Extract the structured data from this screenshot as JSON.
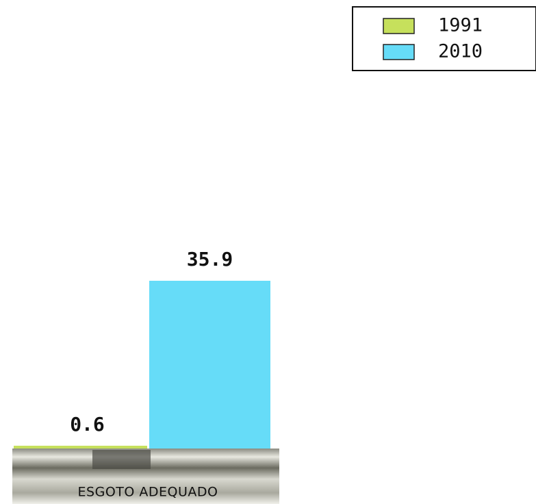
{
  "chart_data": {
    "type": "bar",
    "categories": [
      "ESGOTO ADEQUADO"
    ],
    "series": [
      {
        "name": "1991",
        "color": "#c6e05c",
        "values": [
          0.6
        ]
      },
      {
        "name": "2010",
        "color": "#66dcf8",
        "values": [
          35.9
        ]
      }
    ],
    "legend": "top-right"
  }
}
